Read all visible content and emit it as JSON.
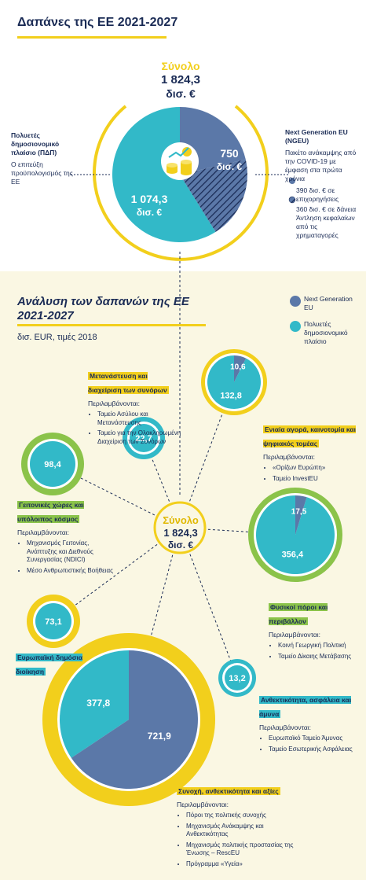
{
  "colors": {
    "navy": "#1a2b55",
    "ngeu": "#5b78a8",
    "mff": "#32b9c8",
    "yellow": "#f2cf1c",
    "green": "#8bc34a",
    "cyan_ring": "#32b9c8",
    "cream": "#faf7e3"
  },
  "top": {
    "title": "Δαπάνες της ΕΕ 2021-2027",
    "total_label": "Σύνολο",
    "total_value": "1 824,3",
    "total_unit": "δισ. €",
    "mff_title": "Πολυετές δημοσιονομικό πλαίσιο (ΠΔΠ)",
    "mff_desc": "Ο επιτεύξη προϋπολογισμός της ΕΕ",
    "ngeu_title": "Next Generation EU (NGEU)",
    "ngeu_desc": "Πακέτο ανάκαμψης από την COVID-19 με έμφαση στα πρώτα χρόνια",
    "ngeu_grants": "390 δισ. € σε επιχορηγήσεις",
    "ngeu_loans": "360 δισ. € σε δάνεια",
    "ngeu_loans_sub": "Άντληση κεφαλαίων από τις χρηματαγορές",
    "value_ngeu": "750",
    "value_mff": "1 074,3",
    "unit": "δισ. €"
  },
  "bottom": {
    "title_line1": "Ανάλυση των δαπανών της ΕΕ",
    "title_line2": "2021-2027",
    "subtitle": "δισ. EUR, τιμές 2018",
    "legend_ngeu": "Next Generation EU",
    "legend_mff": "Πολυετές δημοσιονομικό πλαίσιο",
    "center_label": "Σύνολο",
    "center_value": "1 824,3",
    "center_unit": "δισ. €",
    "includes": "Περιλαμβάνονται:",
    "migration": {
      "title": "Μετανάστευση και διαχείριση των συνόρων",
      "items": [
        "Ταμείο Ασύλου και Μετανάστευσης",
        "Ταμείο για την Ολοκληρωμένη Διαχείριση των Συνόρων"
      ]
    },
    "single_market": {
      "title": "Ενιαία αγορά, καινοτομία και ψηφιακός τομέας",
      "items": [
        "«Ορίζων Ευρώπη»",
        "Ταμείο InvestEU"
      ]
    },
    "neighbourhood": {
      "title": "Γειτονικές χώρες και υπόλοιπος κόσμος",
      "items": [
        "Μηχανισμός Γειτονίας, Ανάπτυξης και Διεθνούς Συνεργασίας (NDICI)",
        "Μέσο Ανθρωπιστικής Βοήθειας"
      ]
    },
    "natural": {
      "title": "Φυσικοί πόροι και περιβάλλον",
      "items": [
        "Κοινή Γεωργική Πολιτική",
        "Ταμείο Δίκαιης Μετάβασης"
      ]
    },
    "admin": {
      "title": "Ευρωπαϊκή δημόσια διοίκηση"
    },
    "security": {
      "title": "Ανθεκτικότητα, ασφάλεια και άμυνα",
      "items": [
        "Ευρωπαϊκό Ταμείο Άμυνας",
        "Ταμείο Εσωτερικής Ασφάλειας"
      ]
    },
    "cohesion": {
      "title": "Συνοχή, ανθεκτικότητα και αξίες",
      "items": [
        "Πόροι της πολιτικής συνοχής",
        "Μηχανισμός Ανάκαμψης και Ανθεκτικότητας",
        "Μηχανισμός πολιτικής προστασίας της Ένωσης – RescEU",
        "Πρόγραμμα «Υγεία»"
      ]
    }
  },
  "chart_data": [
    {
      "type": "pie",
      "title": "Δαπάνες της ΕΕ 2021-2027",
      "categories": [
        "Next Generation EU (NGEU)",
        "Πολυετές δημοσιονομικό πλαίσιο (ΠΔΠ)"
      ],
      "values": [
        750,
        1074.3
      ],
      "total": 1824.3,
      "sub_breakdown_ngeu": [
        {
          "name": "επιχορηγήσεις",
          "value": 390
        },
        {
          "name": "δάνεια",
          "value": 360
        }
      ]
    },
    {
      "type": "pie",
      "title": "Ανάλυση των δαπανών της ΕΕ 2021-2027",
      "unit": "δισ. EUR, τιμές 2018",
      "series": [
        {
          "name": "Next Generation EU",
          "values": [
            721.9,
            17.5,
            10.6,
            0,
            0,
            0,
            0
          ]
        },
        {
          "name": "Πολυετές δημοσιονομικό πλαίσιο",
          "values": [
            377.8,
            356.4,
            132.8,
            98.4,
            73.1,
            22.7,
            13.2
          ]
        }
      ],
      "categories": [
        "Συνοχή, ανθεκτικότητα και αξίες",
        "Φυσικοί πόροι και περιβάλλον",
        "Ενιαία αγορά, καινοτομία και ψηφιακός τομέας",
        "Γειτονικές χώρες και υπόλοιπος κόσμος",
        "Ευρωπαϊκή δημόσια διοίκηση",
        "Μετανάστευση και διαχείριση των συνόρων",
        "Ανθεκτικότητα, ασφάλεια και άμυνα"
      ],
      "labels": {
        "cohesion": [
          "721,9",
          "377,8"
        ],
        "natural": [
          "17,5",
          "356,4"
        ],
        "single_market": [
          "10,6",
          "132,8"
        ],
        "neighbourhood": [
          "98,4"
        ],
        "admin": [
          "73,1"
        ],
        "migration": [
          "22,7"
        ],
        "security": [
          "13,2"
        ]
      }
    }
  ]
}
